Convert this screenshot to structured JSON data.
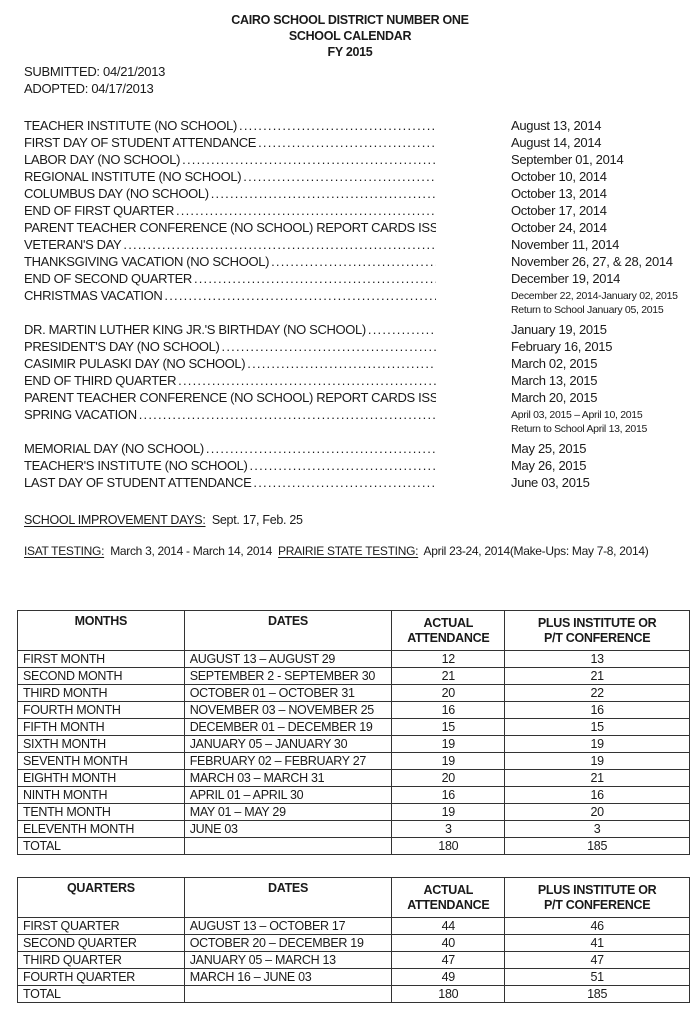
{
  "header": {
    "district": "CAIRO SCHOOL DISTRICT NUMBER ONE",
    "title": "SCHOOL CALENDAR",
    "fiscal_year": "FY 2015"
  },
  "meta": {
    "submitted": "SUBMITTED:  04/21/2013",
    "adopted": "ADOPTED:  04/17/2013"
  },
  "events": [
    {
      "label": "TEACHER INSTITUTE (NO SCHOOL)",
      "date": "August 13, 2014"
    },
    {
      "label": "FIRST DAY OF STUDENT ATTENDANCE",
      "date": "August 14, 2014"
    },
    {
      "label": "LABOR DAY (NO SCHOOL)",
      "date": "September 01, 2014"
    },
    {
      "label": "REGIONAL INSTITUTE (NO SCHOOL)",
      "date": "October 10, 2014"
    },
    {
      "label": "COLUMBUS DAY (NO SCHOOL)",
      "date": "October 13, 2014"
    },
    {
      "label": "END OF FIRST QUARTER",
      "date": "October 17, 2014"
    },
    {
      "label": "PARENT TEACHER CONFERENCE (NO SCHOOL) REPORT CARDS ISSUED",
      "date": "October 24, 2014"
    },
    {
      "label": "VETERAN'S DAY",
      "date": "November 11, 2014"
    },
    {
      "label": "THANKSGIVING VACATION (NO SCHOOL)",
      "date": "November 26, 27, & 28, 2014"
    },
    {
      "label": "END OF SECOND QUARTER",
      "date": "December 19, 2014"
    },
    {
      "label": "CHRISTMAS VACATION",
      "date": "December 22, 2014-January 02, 2015",
      "sub": "Return to School January 05, 2015"
    },
    {
      "label": "DR. MARTIN LUTHER KING JR.'S BIRTHDAY (NO SCHOOL)",
      "date": "January 19, 2015"
    },
    {
      "label": "PRESIDENT'S DAY (NO SCHOOL)",
      "date": "February 16, 2015"
    },
    {
      "label": "CASIMIR PULASKI DAY (NO SCHOOL)",
      "date": "March 02, 2015"
    },
    {
      "label": "END OF THIRD QUARTER",
      "date": "March 13, 2015"
    },
    {
      "label": "PARENT TEACHER CONFERENCE (NO SCHOOL) REPORT CARDS ISSUED",
      "date": "March 20, 2015"
    },
    {
      "label": "SPRING VACATION",
      "date": "April 03, 2015 – April 10, 2015",
      "sub": "Return to School April 13, 2015"
    },
    {
      "label": "MEMORIAL DAY (NO SCHOOL)",
      "date": "May 25, 2015"
    },
    {
      "label": "TEACHER'S INSTITUTE (NO SCHOOL)",
      "date": "May 26, 2015"
    },
    {
      "label": "LAST DAY OF STUDENT ATTENDANCE",
      "date": "June 03, 2015"
    }
  ],
  "notes": {
    "improvement_label": "SCHOOL IMPROVEMENT DAYS:",
    "improvement_value": "Sept. 17, Feb. 25",
    "isat_label": "ISAT TESTING:",
    "isat_value": "March 3, 2014 - March 14, 2014",
    "prairie_label": "PRAIRIE STATE TESTING:",
    "prairie_value": "April 23-24, 2014(Make-Ups: May 7-8, 2014)"
  },
  "months_table": {
    "headers": [
      "MONTHS",
      "DATES",
      "ACTUAL ATTENDANCE",
      "PLUS INSTITUTE OR P/T CONFERENCE"
    ],
    "rows": [
      [
        "FIRST MONTH",
        "AUGUST 13 – AUGUST 29",
        "12",
        "13"
      ],
      [
        "SECOND MONTH",
        "SEPTEMBER 2 - SEPTEMBER 30",
        "21",
        "21"
      ],
      [
        "THIRD MONTH",
        "OCTOBER 01 – OCTOBER 31",
        "20",
        "22"
      ],
      [
        "FOURTH MONTH",
        "NOVEMBER 03 – NOVEMBER 25",
        "16",
        "16"
      ],
      [
        "FIFTH MONTH",
        "DECEMBER 01 – DECEMBER 19",
        "15",
        "15"
      ],
      [
        "SIXTH MONTH",
        "JANUARY 05 – JANUARY 30",
        "19",
        "19"
      ],
      [
        "SEVENTH MONTH",
        "FEBRUARY 02 – FEBRUARY 27",
        "19",
        "19"
      ],
      [
        "EIGHTH MONTH",
        "MARCH 03 – MARCH 31",
        "20",
        "21"
      ],
      [
        "NINTH MONTH",
        "APRIL 01 – APRIL 30",
        "16",
        "16"
      ],
      [
        "TENTH MONTH",
        "MAY 01 – MAY 29",
        "19",
        "20"
      ],
      [
        "ELEVENTH MONTH",
        "JUNE 03",
        "3",
        "3"
      ],
      [
        "TOTAL",
        "",
        "180",
        "185"
      ]
    ]
  },
  "quarters_table": {
    "headers": [
      "QUARTERS",
      "DATES",
      "ACTUAL ATTENDANCE",
      "PLUS INSTITUTE OR P/T CONFERENCE"
    ],
    "rows": [
      [
        "FIRST QUARTER",
        "AUGUST 13 – OCTOBER 17",
        "44",
        "46"
      ],
      [
        "SECOND QUARTER",
        "OCTOBER 20 – DECEMBER 19",
        "40",
        "41"
      ],
      [
        "THIRD QUARTER",
        "JANUARY 05 – MARCH 13",
        "47",
        "47"
      ],
      [
        "FOURTH QUARTER",
        "MARCH 16 – JUNE 03",
        "49",
        "51"
      ],
      [
        "TOTAL",
        "",
        "180",
        "185"
      ]
    ]
  }
}
